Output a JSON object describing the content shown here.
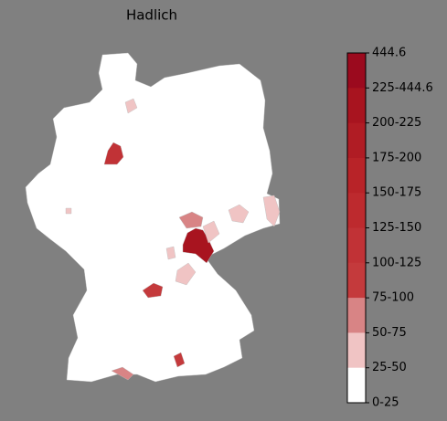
{
  "title": "Hadlich",
  "colorbar": {
    "labels": [
      "444.6",
      "225-444.6",
      "200-225",
      "175-200",
      "150-175",
      "125-150",
      "100-125",
      "75-100",
      "50-75",
      "25-50",
      "0-25"
    ],
    "colors": [
      "#9b0a1e",
      "#a8141f",
      "#b01c24",
      "#b82328",
      "#bd2a2e",
      "#c13236",
      "#c43a3c",
      "#d88485",
      "#f0c4c4",
      "#ffffff"
    ]
  }
}
